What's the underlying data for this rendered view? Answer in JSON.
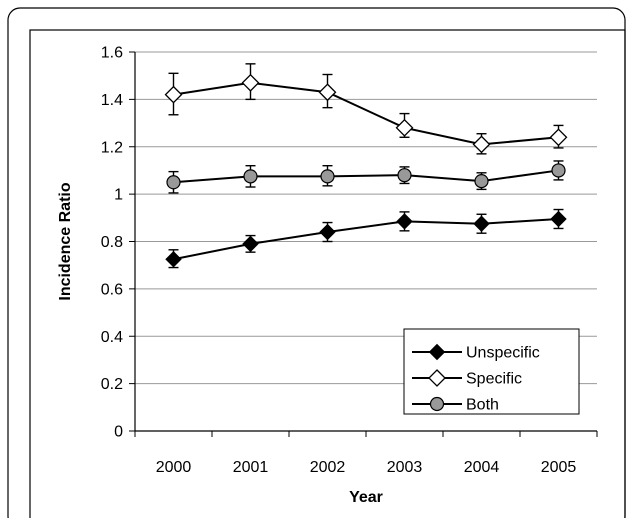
{
  "chart_data": {
    "type": "line",
    "title": "",
    "xlabel": "Year",
    "ylabel": "Incidence Ratio",
    "x": [
      "2000",
      "2001",
      "2002",
      "2003",
      "2004",
      "2005"
    ],
    "ylim": [
      0,
      1.6
    ],
    "y_ticks": [
      "0",
      "0.2",
      "0.4",
      "0.6",
      "0.8",
      "1",
      "1.2",
      "1.4",
      "1.6"
    ],
    "grid": true,
    "legend_position": "bottom-right",
    "series": [
      {
        "name": "Unspecific",
        "marker": "filled-diamond",
        "color": "#000000",
        "values": [
          0.725,
          0.79,
          0.84,
          0.885,
          0.875,
          0.895
        ],
        "err_low": [
          0.69,
          0.755,
          0.8,
          0.845,
          0.835,
          0.855
        ],
        "err_high": [
          0.765,
          0.825,
          0.88,
          0.925,
          0.915,
          0.935
        ]
      },
      {
        "name": "Specific",
        "marker": "open-diamond",
        "color": "#000000",
        "values": [
          1.42,
          1.47,
          1.43,
          1.28,
          1.21,
          1.24
        ],
        "err_low": [
          1.335,
          1.4,
          1.365,
          1.24,
          1.17,
          1.195
        ],
        "err_high": [
          1.51,
          1.55,
          1.505,
          1.34,
          1.255,
          1.29
        ]
      },
      {
        "name": "Both",
        "marker": "gray-circle",
        "color": "#999999",
        "values": [
          1.05,
          1.075,
          1.075,
          1.08,
          1.055,
          1.1
        ],
        "err_low": [
          1.005,
          1.03,
          1.035,
          1.045,
          1.02,
          1.06
        ],
        "err_high": [
          1.095,
          1.12,
          1.12,
          1.115,
          1.09,
          1.14
        ]
      }
    ]
  }
}
